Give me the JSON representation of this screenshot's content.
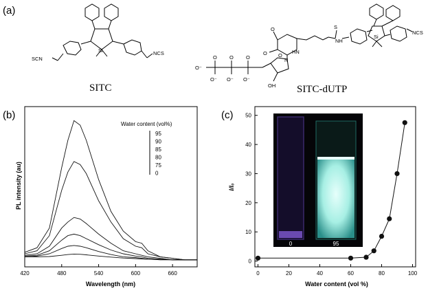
{
  "panel_labels": {
    "a": "(a)",
    "b": "(b)",
    "c": "(c)"
  },
  "structures": {
    "left_caption": "SITC",
    "right_caption": "SITC-dUTP",
    "groups": {
      "scn": "SCN",
      "ncs": "NCS",
      "si": "Si",
      "o": "O",
      "oh": "OH",
      "nh": "NH",
      "s": "S",
      "minus_o": "O⁻",
      "hn": "HN",
      "n": "N"
    }
  },
  "chart_data": [
    {
      "id": "b",
      "type": "line",
      "xlabel": "Wavelength (nm)",
      "ylabel": "PL intensity (au)",
      "xlim": [
        420,
        700
      ],
      "x_ticks": [
        420,
        480,
        540,
        600,
        660
      ],
      "legend_title": "Water content (vol%)",
      "legend_labels": [
        "95",
        "90",
        "85",
        "80",
        "75",
        "0"
      ],
      "legend_placement": "top-right",
      "x": [
        420,
        440,
        460,
        480,
        490,
        500,
        510,
        520,
        540,
        560,
        580,
        600,
        610,
        620,
        640,
        660,
        680,
        700
      ],
      "series": [
        {
          "values": [
            0.06,
            0.09,
            0.22,
            0.62,
            0.8,
            0.93,
            0.9,
            0.8,
            0.54,
            0.33,
            0.2,
            0.13,
            0.12,
            0.07,
            0.03,
            0.02,
            0.01,
            0.01
          ]
        },
        {
          "values": [
            0.05,
            0.07,
            0.17,
            0.47,
            0.59,
            0.66,
            0.64,
            0.58,
            0.4,
            0.26,
            0.15,
            0.1,
            0.09,
            0.05,
            0.03,
            0.02,
            0.01,
            0.01
          ]
        },
        {
          "values": [
            0.04,
            0.05,
            0.1,
            0.22,
            0.26,
            0.29,
            0.28,
            0.25,
            0.18,
            0.12,
            0.07,
            0.05,
            0.04,
            0.03,
            0.02,
            0.01,
            0.01,
            0.01
          ]
        },
        {
          "values": [
            0.035,
            0.04,
            0.07,
            0.14,
            0.17,
            0.18,
            0.17,
            0.15,
            0.11,
            0.075,
            0.05,
            0.035,
            0.03,
            0.02,
            0.015,
            0.01,
            0.01,
            0.01
          ]
        },
        {
          "values": [
            0.03,
            0.035,
            0.05,
            0.085,
            0.1,
            0.105,
            0.1,
            0.09,
            0.065,
            0.045,
            0.03,
            0.025,
            0.02,
            0.015,
            0.01,
            0.01,
            0.01,
            0.01
          ]
        },
        {
          "values": [
            0.03,
            0.03,
            0.032,
            0.04,
            0.045,
            0.048,
            0.047,
            0.043,
            0.035,
            0.028,
            0.022,
            0.018,
            0.016,
            0.014,
            0.012,
            0.011,
            0.01,
            0.01
          ]
        }
      ]
    },
    {
      "id": "c",
      "type": "scatter",
      "xlabel": "Water content (vol %)",
      "ylabel": "I/I₀",
      "xlim": [
        -2,
        102
      ],
      "ylim": [
        -2,
        53
      ],
      "x_ticks": [
        0,
        20,
        40,
        60,
        80,
        100
      ],
      "y_ticks": [
        0,
        10,
        20,
        30,
        40,
        50
      ],
      "points": [
        {
          "x": 0,
          "y": 1.0
        },
        {
          "x": 60,
          "y": 1.0
        },
        {
          "x": 70,
          "y": 1.3
        },
        {
          "x": 75,
          "y": 3.5
        },
        {
          "x": 80,
          "y": 8.5
        },
        {
          "x": 85,
          "y": 14.5
        },
        {
          "x": 90,
          "y": 30.0
        },
        {
          "x": 95,
          "y": 47.5
        }
      ],
      "inset": {
        "left_label": "0",
        "right_label": "95",
        "left_color": "#140d2a",
        "right_color": "#bff5f0"
      }
    }
  ]
}
